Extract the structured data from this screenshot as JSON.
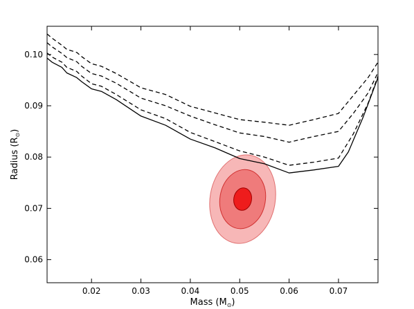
{
  "chart_data": {
    "type": "line",
    "title": "",
    "xlabel": "Mass (M",
    "xlabel_sub": "⊙",
    "xlabel_end": ")",
    "ylabel": "Radius (R",
    "ylabel_sub": "⊙",
    "ylabel_end": ")",
    "xlim": [
      0.011,
      0.078
    ],
    "ylim": [
      0.0555,
      0.1055
    ],
    "xticks": [
      0.02,
      0.03,
      0.04,
      0.05,
      0.06,
      0.07
    ],
    "xtick_labels": [
      "0.02",
      "0.03",
      "0.04",
      "0.05",
      "0.06",
      "0.07"
    ],
    "yticks": [
      0.06,
      0.07,
      0.08,
      0.09,
      0.1
    ],
    "ytick_labels": [
      "0.06",
      "0.07",
      "0.08",
      "0.09",
      "0.10"
    ],
    "grid": false,
    "series": [
      {
        "style": "solid",
        "x": [
          0.011,
          0.012,
          0.014,
          0.015,
          0.017,
          0.018,
          0.02,
          0.022,
          0.025,
          0.03,
          0.035,
          0.04,
          0.045,
          0.05,
          0.055,
          0.06,
          0.065,
          0.07,
          0.072,
          0.075,
          0.078
        ],
        "y": [
          0.0993,
          0.0985,
          0.0975,
          0.0964,
          0.0955,
          0.0947,
          0.0933,
          0.0928,
          0.0912,
          0.088,
          0.0862,
          0.0835,
          0.0818,
          0.0797,
          0.0787,
          0.0769,
          0.0775,
          0.0782,
          0.081,
          0.0878,
          0.0955
        ]
      },
      {
        "style": "dashed",
        "x": [
          0.011,
          0.012,
          0.014,
          0.015,
          0.017,
          0.018,
          0.02,
          0.022,
          0.025,
          0.03,
          0.035,
          0.04,
          0.045,
          0.05,
          0.055,
          0.06,
          0.065,
          0.07,
          0.073,
          0.076,
          0.078
        ],
        "y": [
          0.1003,
          0.0995,
          0.0985,
          0.0975,
          0.0967,
          0.0958,
          0.0943,
          0.0938,
          0.0922,
          0.0892,
          0.0875,
          0.0848,
          0.083,
          0.0812,
          0.08,
          0.0784,
          0.079,
          0.0798,
          0.0845,
          0.0905,
          0.0958
        ]
      },
      {
        "style": "dashed",
        "x": [
          0.011,
          0.012,
          0.014,
          0.015,
          0.017,
          0.018,
          0.02,
          0.022,
          0.025,
          0.03,
          0.035,
          0.04,
          0.045,
          0.05,
          0.055,
          0.06,
          0.065,
          0.07,
          0.073,
          0.076,
          0.078
        ],
        "y": [
          0.1023,
          0.1015,
          0.1002,
          0.0994,
          0.0986,
          0.0977,
          0.0963,
          0.0958,
          0.0944,
          0.0915,
          0.09,
          0.088,
          0.0863,
          0.0847,
          0.084,
          0.0829,
          0.084,
          0.085,
          0.0885,
          0.0925,
          0.0965
        ]
      },
      {
        "style": "dashed",
        "x": [
          0.011,
          0.012,
          0.014,
          0.015,
          0.017,
          0.018,
          0.02,
          0.022,
          0.025,
          0.03,
          0.035,
          0.04,
          0.045,
          0.05,
          0.055,
          0.06,
          0.065,
          0.07,
          0.073,
          0.076,
          0.078
        ],
        "y": [
          0.104,
          0.1032,
          0.1018,
          0.101,
          0.1004,
          0.0996,
          0.0982,
          0.0977,
          0.0963,
          0.0935,
          0.0922,
          0.0899,
          0.0886,
          0.0873,
          0.0868,
          0.0862,
          0.0873,
          0.0885,
          0.092,
          0.0955,
          0.0985
        ]
      }
    ],
    "confidence_ellipses": {
      "center": [
        0.0506,
        0.0718
      ],
      "semi_major_y": [
        0.0022,
        0.0058,
        0.0087
      ],
      "semi_minor_x": [
        0.0018,
        0.0046,
        0.0066
      ],
      "tilt_deg": 10,
      "colors": [
        "#ee1c1c",
        "#ef7b7b",
        "#f7b7b7"
      ],
      "edge_colors": [
        "#a00000",
        "#d03030",
        "#e07070"
      ]
    },
    "colors": {
      "line": "#000000",
      "axes": "#000000"
    }
  }
}
